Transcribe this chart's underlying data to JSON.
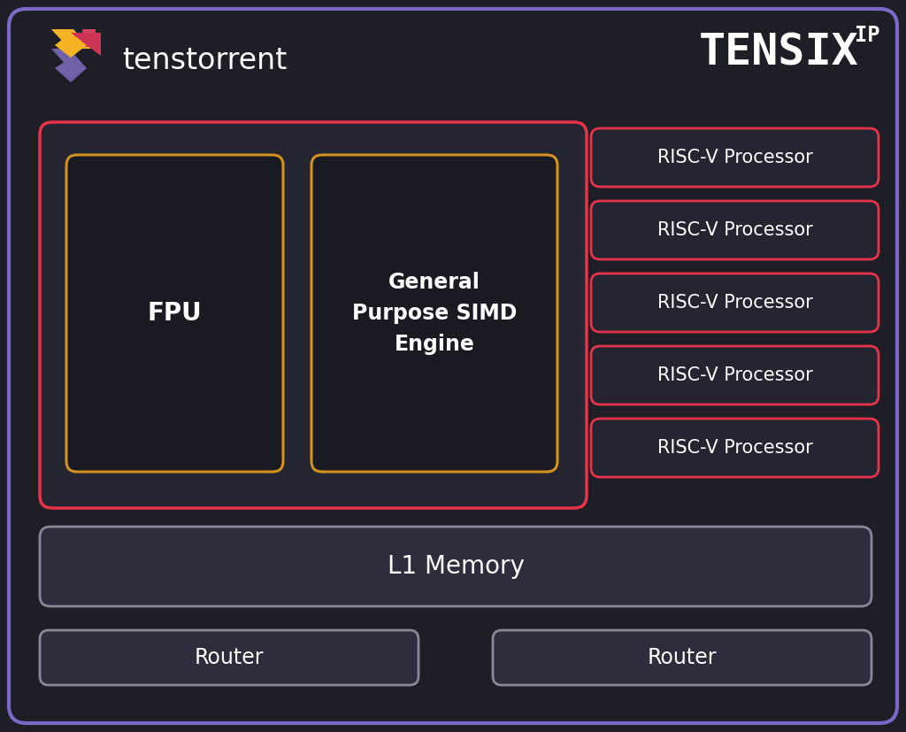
{
  "bg_color": "#1e1e26",
  "border_color": "#7b68c8",
  "text_color": "#ffffff",
  "red_color": "#e8334a",
  "yellow_color": "#d4921e",
  "gray_box_color": "#2d2d3d",
  "inner_box_color": "#1a1a22",
  "red_box_color": "#252532",
  "title_tensix": "TENSIX",
  "title_tensix_super": "IP",
  "title_tenstorrent": "tenstorrent",
  "fpu_label": "FPU",
  "gp_label": "General\nPurpose SIMD\nEngine",
  "l1_label": "L1 Memory",
  "router_label": "Router",
  "riscv_label": "RISC-V Processor",
  "num_riscv": 5,
  "fig_w": 10.24,
  "fig_h": 8.27,
  "dpi": 100
}
